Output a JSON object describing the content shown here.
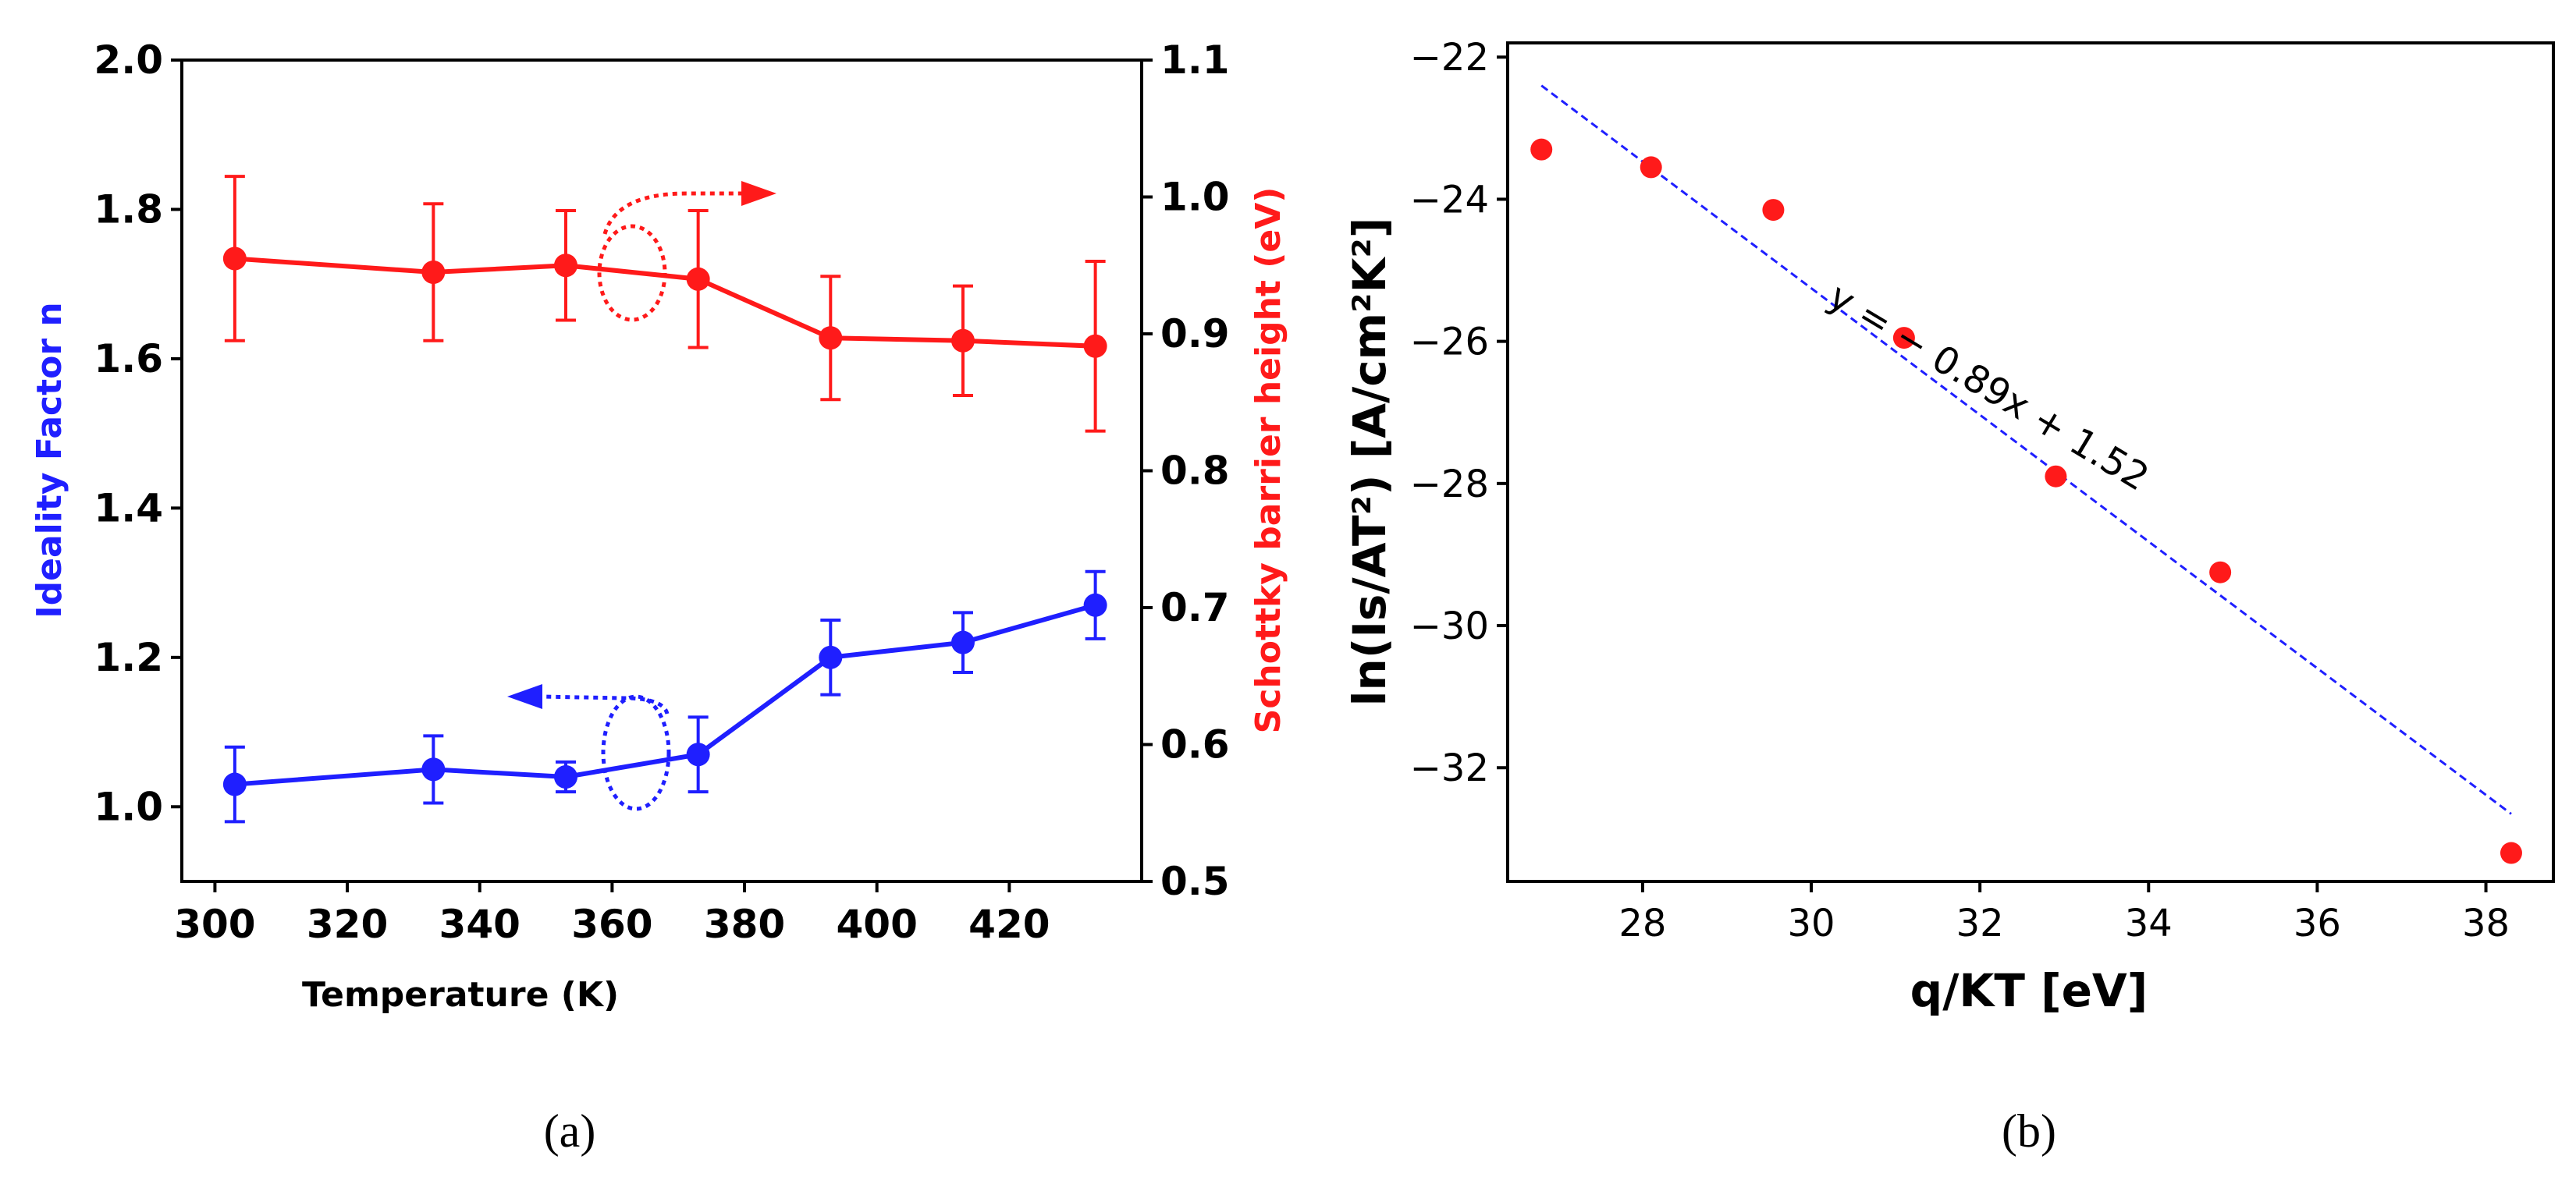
{
  "chart_data": [
    {
      "type": "line",
      "panel_label": "(a)",
      "xlabel": "Temperature (K)",
      "ylabel": "Ideality Factor n",
      "y2label": "Schottky barrier height (eV)",
      "xlim": [
        295,
        440
      ],
      "ylim": [
        0.9,
        2.0
      ],
      "y2lim": [
        0.5,
        1.1
      ],
      "xticks": [
        300,
        320,
        340,
        360,
        380,
        400,
        420
      ],
      "yticks": [
        "1.0",
        "1.2",
        "1.4",
        "1.6",
        "1.8",
        "2.0"
      ],
      "y2ticks": [
        "0.5",
        "0.6",
        "0.7",
        "0.8",
        "0.9",
        "1.0",
        "1.1"
      ],
      "colors": {
        "ideality": "#1f1fff",
        "barrier": "#ff1a1a",
        "axis": "#000000"
      },
      "series": [
        {
          "name": "Ideality Factor n",
          "axis": "left",
          "x": [
            303,
            333,
            353,
            373,
            393,
            413,
            433
          ],
          "y": [
            1.03,
            1.05,
            1.04,
            1.07,
            1.2,
            1.22,
            1.27
          ],
          "err": [
            0.05,
            0.045,
            0.02,
            0.05,
            0.05,
            0.04,
            0.045
          ]
        },
        {
          "name": "Schottky barrier height (eV)",
          "axis": "right",
          "x": [
            303,
            333,
            353,
            373,
            393,
            413,
            433
          ],
          "y": [
            0.955,
            0.945,
            0.95,
            0.94,
            0.897,
            0.895,
            0.891
          ],
          "err": [
            0.06,
            0.05,
            0.04,
            0.05,
            0.045,
            0.04,
            0.062
          ]
        }
      ]
    },
    {
      "type": "scatter",
      "panel_label": "(b)",
      "xlabel": "q/KT [eV]",
      "ylabel": "ln(Is/AT²)  [A/cm²K²]",
      "xlim": [
        26.4,
        38.8
      ],
      "ylim": [
        -33.6,
        -21.8
      ],
      "xticks": [
        28,
        30,
        32,
        34,
        36,
        38
      ],
      "yticks": [
        -32,
        -30,
        -28,
        -26,
        -24,
        -22
      ],
      "colors": {
        "points": "#ff1a1a",
        "fit": "#1f1fff"
      },
      "points": {
        "x": [
          26.8,
          28.1,
          29.55,
          31.1,
          32.9,
          34.85,
          38.3
        ],
        "y": [
          -23.3,
          -23.55,
          -24.15,
          -25.95,
          -27.9,
          -29.25,
          -33.2
        ]
      },
      "fit": {
        "x": [
          26.8,
          38.3
        ],
        "y": [
          -22.4,
          -32.65
        ],
        "label": "y = − 0.89x + 1.52"
      }
    }
  ]
}
